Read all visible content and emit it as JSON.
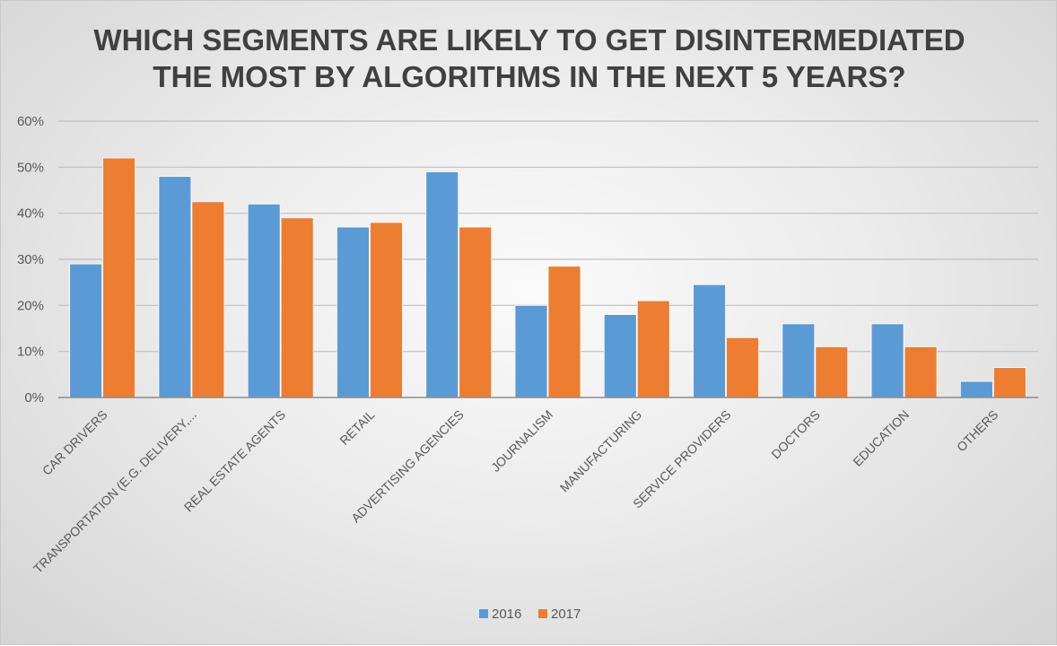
{
  "chart_data": {
    "type": "bar",
    "title": [
      "WHICH SEGMENTS ARE LIKELY TO GET DISINTERMEDIATED",
      "THE MOST BY ALGORITHMS IN THE NEXT 5 YEARS?"
    ],
    "categories": [
      "CAR DRIVERS",
      "TRANSPORTATION (E.G. DELIVERY,...",
      "REAL ESTATE AGENTS",
      "RETAIL",
      "ADVERTISING AGENCIES",
      "JOURNALISM",
      "MANUFACTURING",
      "SERVICE PROVIDERS",
      "DOCTORS",
      "EDUCATION",
      "OTHERS"
    ],
    "series": [
      {
        "name": "2016",
        "color": "#5B9BD5",
        "values": [
          29,
          48,
          42,
          37,
          49,
          20,
          18,
          24.5,
          16,
          16,
          3.5
        ]
      },
      {
        "name": "2017",
        "color": "#ED7D31",
        "values": [
          52,
          42.5,
          39,
          38,
          37,
          28.5,
          21,
          13,
          11,
          11,
          6.5
        ]
      }
    ],
    "yticks": [
      "0%",
      "10%",
      "20%",
      "30%",
      "40%",
      "50%",
      "60%"
    ],
    "ylim": [
      0,
      60
    ],
    "grid": true,
    "legend": "bottom"
  }
}
